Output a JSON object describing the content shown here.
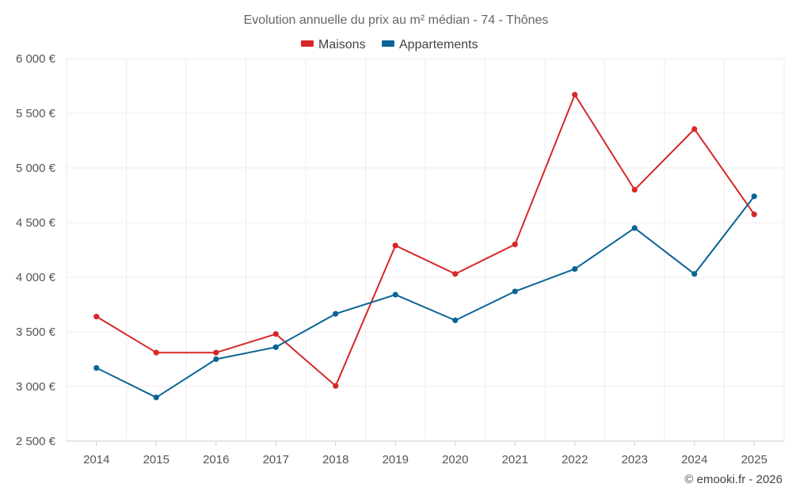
{
  "chart_data": {
    "type": "line",
    "title": "Evolution annuelle du prix au m² médian - 74 - Thônes",
    "categories": [
      "2014",
      "2015",
      "2016",
      "2017",
      "2018",
      "2019",
      "2020",
      "2021",
      "2022",
      "2023",
      "2024",
      "2025"
    ],
    "series": [
      {
        "name": "Maisons",
        "color": "#d62728",
        "values": [
          3640,
          3310,
          3310,
          3480,
          3005,
          4290,
          4030,
          4300,
          5670,
          4800,
          5355,
          4575
        ]
      },
      {
        "name": "Appartements",
        "color": "#0a6495",
        "values": [
          3170,
          2900,
          3250,
          3360,
          3665,
          3840,
          3605,
          3870,
          4075,
          4450,
          4030,
          4740
        ]
      }
    ],
    "ylim": [
      2500,
      6000
    ],
    "yticks": [
      2500,
      3000,
      3500,
      4000,
      4500,
      5000,
      5500,
      6000
    ],
    "ytick_labels": [
      "2 500 €",
      "3 000 €",
      "3 500 €",
      "4 000 €",
      "4 500 €",
      "5 000 €",
      "5 500 €",
      "6 000 €"
    ],
    "xlabel": "",
    "ylabel": "",
    "grid": true,
    "legend_position": "top-center"
  },
  "credit": "© emooki.fr - 2026"
}
